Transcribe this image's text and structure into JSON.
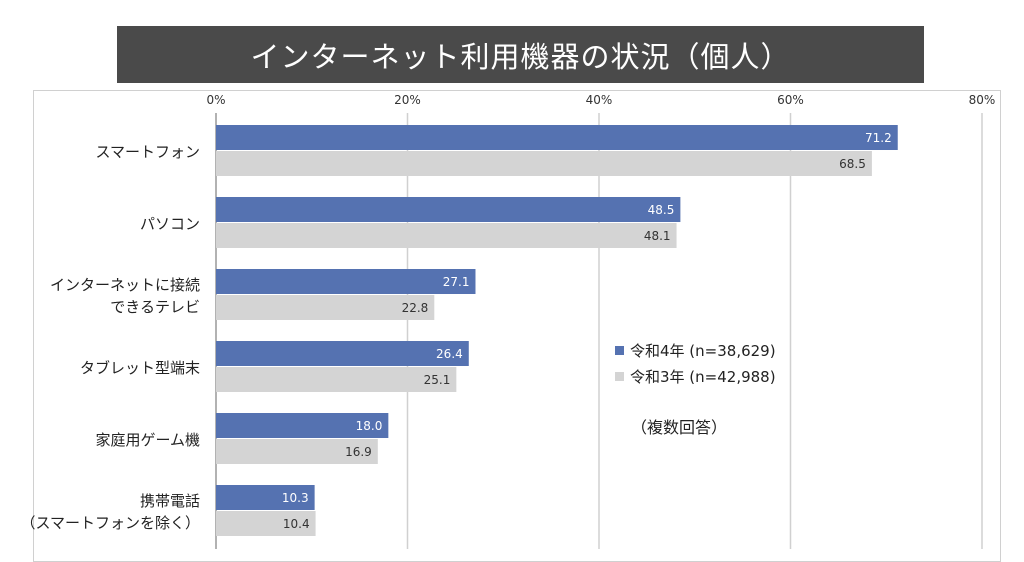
{
  "chart_data": {
    "type": "bar",
    "orientation": "horizontal",
    "title": "インターネット利用機器の状況（個人）",
    "categories": [
      "スマートフォン",
      "パソコン",
      "インターネットに接続\nできるテレビ",
      "タブレット型端末",
      "家庭用ゲーム機",
      "携帯電話\n（スマートフォンを除く）"
    ],
    "series": [
      {
        "name": "令和4年 (n=38,629)",
        "color": "#5572b1",
        "values": [
          71.2,
          48.5,
          27.1,
          26.4,
          18.0,
          10.3
        ]
      },
      {
        "name": "令和3年 (n=42,988)",
        "color": "#d4d4d4",
        "values": [
          68.5,
          48.1,
          22.8,
          25.1,
          16.9,
          10.4
        ]
      }
    ],
    "xlim": [
      0,
      80
    ],
    "xticks": [
      "0%",
      "20%",
      "40%",
      "60%",
      "80%"
    ],
    "grid": true,
    "legend": "center-right",
    "note": "（複数回答）"
  }
}
